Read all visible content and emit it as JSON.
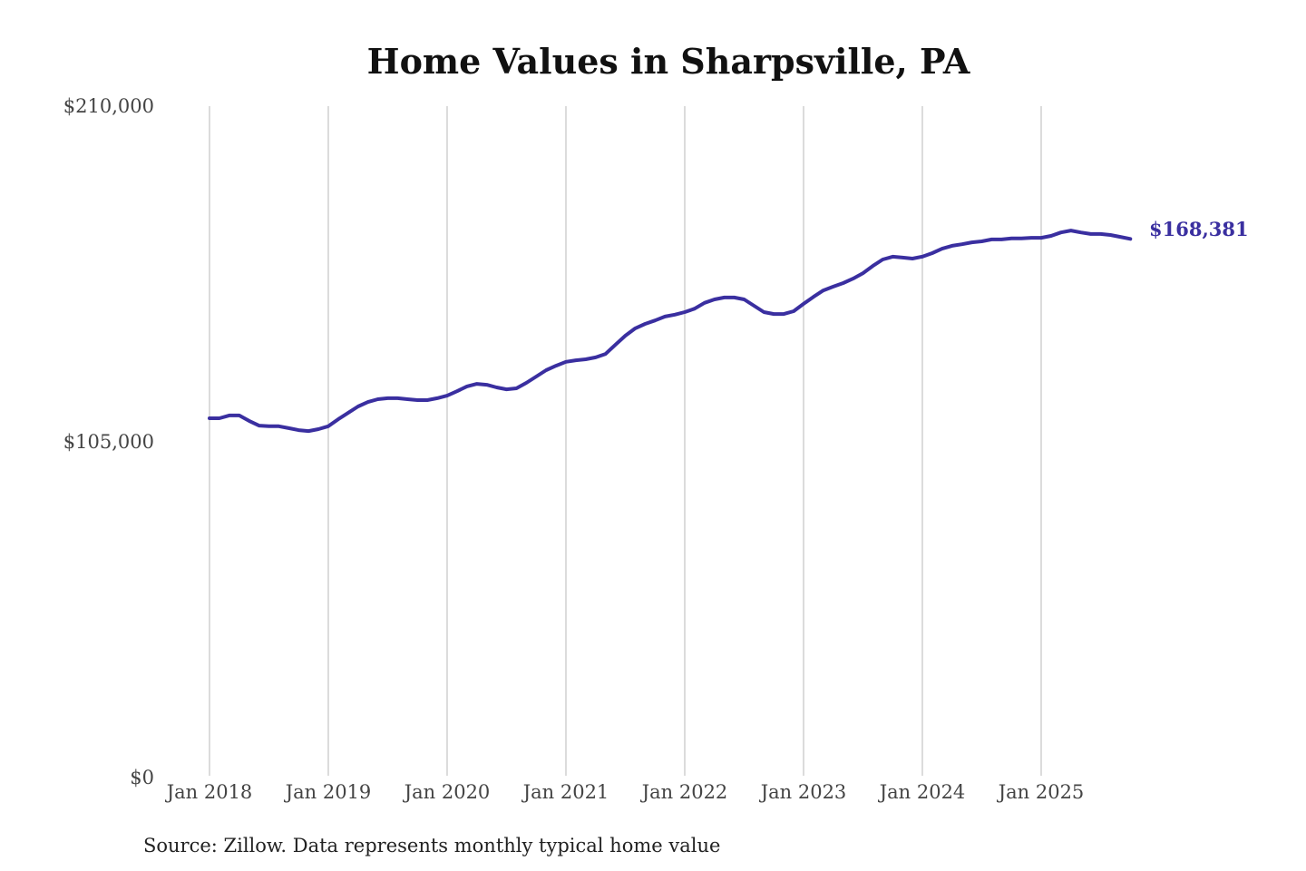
{
  "chart_data": {
    "type": "line",
    "title": "Home Values in Sharpsville, PA",
    "source": "Source: Zillow. Data represents monthly typical home value",
    "xlabel": "",
    "ylabel": "",
    "ylim": [
      0,
      210000
    ],
    "y_ticks": [
      {
        "value": 0,
        "label": "$0"
      },
      {
        "value": 105000,
        "label": "$105,000"
      },
      {
        "value": 210000,
        "label": "$210,000"
      }
    ],
    "x_ticks": [
      "Jan 2018",
      "Jan 2019",
      "Jan 2020",
      "Jan 2021",
      "Jan 2022",
      "Jan 2023",
      "Jan 2024",
      "Jan 2025"
    ],
    "grid": "vertical lines at x ticks",
    "line_color": "#3a2fa0",
    "start": "2018-01",
    "frequency": "monthly",
    "end_label": "$168,381",
    "values": [
      112100,
      112100,
      113000,
      113000,
      111300,
      109800,
      109600,
      109600,
      109000,
      108400,
      108100,
      108700,
      109600,
      111800,
      113800,
      115800,
      117200,
      118100,
      118400,
      118400,
      118100,
      117800,
      117800,
      118400,
      119200,
      120600,
      122100,
      122900,
      122600,
      121800,
      121200,
      121500,
      123200,
      125200,
      127200,
      128600,
      129800,
      130300,
      130600,
      131200,
      132300,
      135200,
      138000,
      140300,
      141700,
      142800,
      144000,
      144600,
      145400,
      146500,
      148300,
      149400,
      150000,
      150000,
      149400,
      147400,
      145400,
      144800,
      144800,
      145700,
      148000,
      150200,
      152200,
      153400,
      154500,
      155900,
      157600,
      159900,
      161900,
      162800,
      162500,
      162200,
      162800,
      163900,
      165300,
      166200,
      166700,
      167300,
      167600,
      168200,
      168200,
      168500,
      168500,
      168700,
      168700,
      169300,
      170400,
      171000,
      170400,
      169900,
      169900,
      169600,
      169000,
      168381
    ]
  }
}
